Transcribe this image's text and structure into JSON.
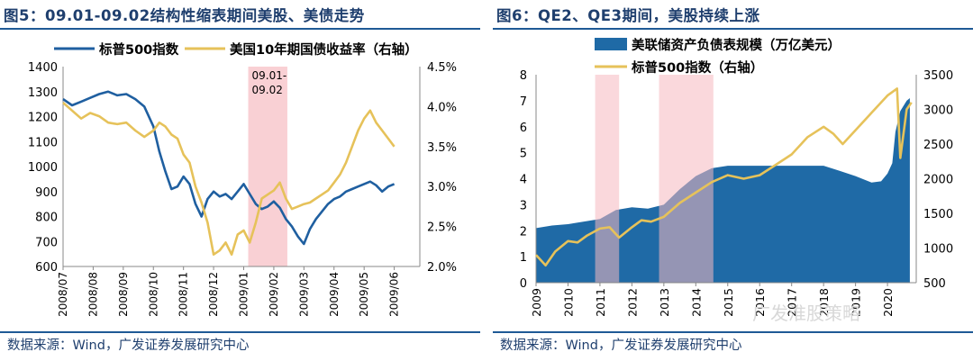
{
  "panels": [
    {
      "title": "图5：09.01-09.02结构性缩表期间美股、美债走势",
      "source": "数据来源：Wind，广发证券发展研究中心",
      "chart_data": {
        "type": "line",
        "legend": [
          "标普500指数",
          "美国10年期国债收益率（右轴）"
        ],
        "x_tick_labels": [
          "2008/07",
          "2008/08",
          "2008/09",
          "2008/10",
          "2008/11",
          "2008/12",
          "2009/01",
          "2009/02",
          "2009/03",
          "2009/04",
          "2009/05",
          "2009/06"
        ],
        "left_ylim": [
          600,
          1400
        ],
        "left_ticks": [
          "1400",
          "1300",
          "1200",
          "1100",
          "1000",
          "900",
          "800",
          "700",
          "600"
        ],
        "right_ylim": [
          2.0,
          4.5
        ],
        "right_ticks": [
          "4.5%",
          "4.0%",
          "3.5%",
          "3.0%",
          "2.5%",
          "2.0%"
        ],
        "highlight": {
          "from": 6.15,
          "to": 7.45,
          "label_line1": "09.01-",
          "label_line2": "09.02"
        },
        "series": [
          {
            "name": "标普500指数",
            "axis": "left",
            "color": "#1f5fa0",
            "points": [
              [
                0.0,
                1270
              ],
              [
                0.3,
                1245
              ],
              [
                0.6,
                1260
              ],
              [
                0.9,
                1275
              ],
              [
                1.2,
                1290
              ],
              [
                1.5,
                1300
              ],
              [
                1.8,
                1285
              ],
              [
                2.1,
                1290
              ],
              [
                2.4,
                1270
              ],
              [
                2.7,
                1240
              ],
              [
                3.0,
                1160
              ],
              [
                3.2,
                1060
              ],
              [
                3.4,
                980
              ],
              [
                3.6,
                910
              ],
              [
                3.8,
                920
              ],
              [
                4.0,
                960
              ],
              [
                4.2,
                930
              ],
              [
                4.4,
                850
              ],
              [
                4.6,
                800
              ],
              [
                4.8,
                870
              ],
              [
                5.0,
                900
              ],
              [
                5.2,
                880
              ],
              [
                5.4,
                890
              ],
              [
                5.6,
                870
              ],
              [
                5.8,
                900
              ],
              [
                6.0,
                930
              ],
              [
                6.2,
                890
              ],
              [
                6.4,
                850
              ],
              [
                6.6,
                830
              ],
              [
                6.8,
                840
              ],
              [
                7.0,
                860
              ],
              [
                7.2,
                835
              ],
              [
                7.4,
                790
              ],
              [
                7.6,
                760
              ],
              [
                7.8,
                720
              ],
              [
                8.0,
                690
              ],
              [
                8.2,
                750
              ],
              [
                8.4,
                790
              ],
              [
                8.6,
                820
              ],
              [
                8.8,
                850
              ],
              [
                9.0,
                870
              ],
              [
                9.2,
                880
              ],
              [
                9.4,
                900
              ],
              [
                9.6,
                910
              ],
              [
                9.8,
                920
              ],
              [
                10.0,
                930
              ],
              [
                10.2,
                940
              ],
              [
                10.4,
                925
              ],
              [
                10.6,
                900
              ],
              [
                10.8,
                920
              ],
              [
                11.0,
                930
              ]
            ]
          },
          {
            "name": "美国10年期国债收益率（右轴）",
            "axis": "right",
            "color": "#e6c25a",
            "points": [
              [
                0.0,
                4.05
              ],
              [
                0.3,
                3.95
              ],
              [
                0.6,
                3.85
              ],
              [
                0.9,
                3.92
              ],
              [
                1.2,
                3.88
              ],
              [
                1.5,
                3.8
              ],
              [
                1.8,
                3.78
              ],
              [
                2.1,
                3.8
              ],
              [
                2.4,
                3.7
              ],
              [
                2.7,
                3.62
              ],
              [
                3.0,
                3.7
              ],
              [
                3.2,
                3.8
              ],
              [
                3.4,
                3.75
              ],
              [
                3.6,
                3.65
              ],
              [
                3.8,
                3.6
              ],
              [
                4.0,
                3.4
              ],
              [
                4.2,
                3.3
              ],
              [
                4.4,
                3.0
              ],
              [
                4.6,
                2.8
              ],
              [
                4.8,
                2.55
              ],
              [
                5.0,
                2.15
              ],
              [
                5.2,
                2.2
              ],
              [
                5.4,
                2.3
              ],
              [
                5.6,
                2.15
              ],
              [
                5.8,
                2.4
              ],
              [
                6.0,
                2.45
              ],
              [
                6.2,
                2.3
              ],
              [
                6.4,
                2.55
              ],
              [
                6.6,
                2.85
              ],
              [
                6.8,
                2.9
              ],
              [
                7.0,
                2.95
              ],
              [
                7.2,
                3.05
              ],
              [
                7.4,
                2.85
              ],
              [
                7.6,
                2.72
              ],
              [
                7.8,
                2.75
              ],
              [
                8.0,
                2.78
              ],
              [
                8.2,
                2.8
              ],
              [
                8.4,
                2.85
              ],
              [
                8.6,
                2.9
              ],
              [
                8.8,
                2.95
              ],
              [
                9.0,
                3.05
              ],
              [
                9.2,
                3.15
              ],
              [
                9.4,
                3.3
              ],
              [
                9.6,
                3.5
              ],
              [
                9.8,
                3.7
              ],
              [
                10.0,
                3.85
              ],
              [
                10.2,
                3.95
              ],
              [
                10.4,
                3.8
              ],
              [
                10.6,
                3.7
              ],
              [
                10.8,
                3.6
              ],
              [
                11.0,
                3.5
              ]
            ]
          }
        ]
      }
    },
    {
      "title": "图6：QE2、QE3期间，美股持续上涨",
      "source": "数据来源：Wind，广发证券发展研究中心",
      "chart_data": {
        "type": "area",
        "legend": [
          "美联储资产负债表规模（万亿美元）",
          "标普500指数（右轴）"
        ],
        "x_tick_labels": [
          "2009",
          "2010",
          "2011",
          "2012",
          "2013",
          "2014",
          "2015",
          "2016",
          "2017",
          "2018",
          "2019",
          "2020"
        ],
        "left_ylim": [
          0,
          8
        ],
        "left_ticks": [
          "8",
          "7",
          "6",
          "5",
          "4",
          "3",
          "2",
          "1",
          "0"
        ],
        "right_ylim": [
          500,
          3500
        ],
        "right_ticks": [
          "3500",
          "3000",
          "2500",
          "2000",
          "1500",
          "1000",
          "500"
        ],
        "highlights": [
          {
            "from": 1.85,
            "to": 2.6
          },
          {
            "from": 3.85,
            "to": 5.55
          }
        ],
        "series": [
          {
            "name": "美联储资产负债表规模（万亿美元）",
            "axis": "left",
            "color": "#1f6aa6",
            "points": [
              [
                0.0,
                2.1
              ],
              [
                0.5,
                2.2
              ],
              [
                1.0,
                2.25
              ],
              [
                1.5,
                2.35
              ],
              [
                2.0,
                2.45
              ],
              [
                2.5,
                2.8
              ],
              [
                3.0,
                2.9
              ],
              [
                3.5,
                2.85
              ],
              [
                4.0,
                3.0
              ],
              [
                4.5,
                3.6
              ],
              [
                5.0,
                4.1
              ],
              [
                5.5,
                4.4
              ],
              [
                6.0,
                4.5
              ],
              [
                7.0,
                4.5
              ],
              [
                8.0,
                4.5
              ],
              [
                9.0,
                4.5
              ],
              [
                9.5,
                4.3
              ],
              [
                10.0,
                4.1
              ],
              [
                10.5,
                3.85
              ],
              [
                10.8,
                3.9
              ],
              [
                11.0,
                4.2
              ],
              [
                11.15,
                4.6
              ],
              [
                11.25,
                5.8
              ],
              [
                11.4,
                6.6
              ],
              [
                11.6,
                7.0
              ],
              [
                11.7,
                7.1
              ]
            ]
          },
          {
            "name": "标普500指数（右轴）",
            "axis": "right",
            "color": "#e6c25a",
            "points": [
              [
                0.0,
                900
              ],
              [
                0.3,
                750
              ],
              [
                0.6,
                950
              ],
              [
                1.0,
                1100
              ],
              [
                1.3,
                1080
              ],
              [
                1.6,
                1180
              ],
              [
                2.0,
                1280
              ],
              [
                2.3,
                1300
              ],
              [
                2.6,
                1150
              ],
              [
                3.0,
                1300
              ],
              [
                3.3,
                1400
              ],
              [
                3.6,
                1380
              ],
              [
                4.0,
                1450
              ],
              [
                4.5,
                1650
              ],
              [
                5.0,
                1800
              ],
              [
                5.5,
                1950
              ],
              [
                6.0,
                2050
              ],
              [
                6.5,
                2000
              ],
              [
                7.0,
                2050
              ],
              [
                7.5,
                2200
              ],
              [
                8.0,
                2350
              ],
              [
                8.5,
                2600
              ],
              [
                9.0,
                2750
              ],
              [
                9.3,
                2650
              ],
              [
                9.6,
                2500
              ],
              [
                10.0,
                2700
              ],
              [
                10.5,
                2950
              ],
              [
                11.0,
                3200
              ],
              [
                11.3,
                3300
              ],
              [
                11.4,
                2300
              ],
              [
                11.6,
                3000
              ],
              [
                11.75,
                3100
              ]
            ]
          }
        ]
      }
    }
  ],
  "watermark": "广发淮股策略"
}
